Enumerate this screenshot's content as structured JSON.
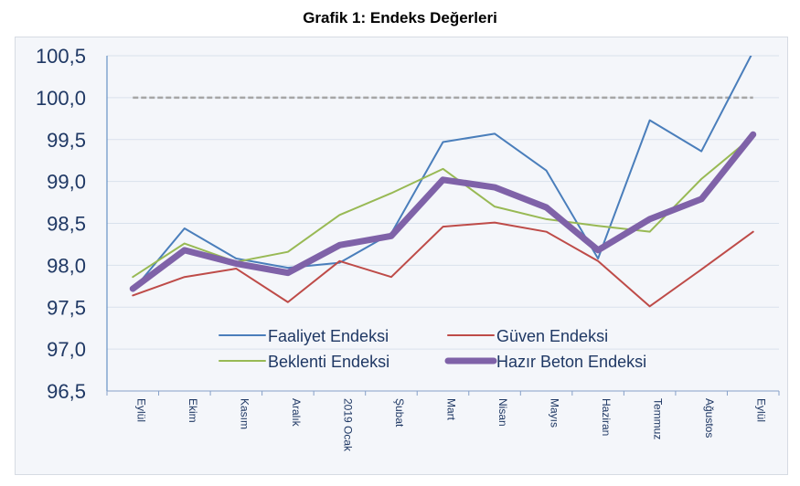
{
  "chart_data": {
    "type": "line",
    "title": "Grafik 1: Endeks Değerleri",
    "xlabel": "",
    "ylabel": "",
    "categories": [
      "Eylül",
      "Ekim",
      "Kasım",
      "Aralık",
      "2019 Ocak",
      "Şubat",
      "Mart",
      "Nisan",
      "Mayıs",
      "Haziran",
      "Temmuz",
      "Ağustos",
      "Eylül"
    ],
    "ylim": [
      96.5,
      100.5
    ],
    "yticks": [
      "96,5",
      "97,0",
      "97,5",
      "98,0",
      "98,5",
      "99,0",
      "99,5",
      "100,0",
      "100,5"
    ],
    "grid": true,
    "reference_line": {
      "value": 100.0,
      "style": "dashed",
      "color": "#a6a6a6"
    },
    "legend_position": "bottom-center inside",
    "series": [
      {
        "name": "Faaliyet Endeksi",
        "color": "#4a7ebb",
        "width": 2,
        "values": [
          97.7,
          98.44,
          98.08,
          97.97,
          98.03,
          98.38,
          99.47,
          99.57,
          99.13,
          98.08,
          99.73,
          99.36,
          100.55
        ]
      },
      {
        "name": "Güven Endeksi",
        "color": "#be4b48",
        "width": 2,
        "values": [
          97.64,
          97.86,
          97.96,
          97.56,
          98.05,
          97.86,
          98.46,
          98.51,
          98.4,
          98.05,
          97.51,
          97.95,
          98.4
        ]
      },
      {
        "name": "Beklenti Endeksi",
        "color": "#98b954",
        "width": 2,
        "values": [
          97.86,
          98.26,
          98.04,
          98.16,
          98.6,
          98.86,
          99.15,
          98.7,
          98.55,
          98.47,
          98.4,
          99.03,
          99.54
        ]
      },
      {
        "name": "Hazır Beton Endeksi",
        "color": "#7f62a8",
        "width": 7,
        "values": [
          97.72,
          98.18,
          98.02,
          97.91,
          98.24,
          98.35,
          99.02,
          98.93,
          98.69,
          98.18,
          98.55,
          98.79,
          99.56
        ]
      }
    ]
  }
}
